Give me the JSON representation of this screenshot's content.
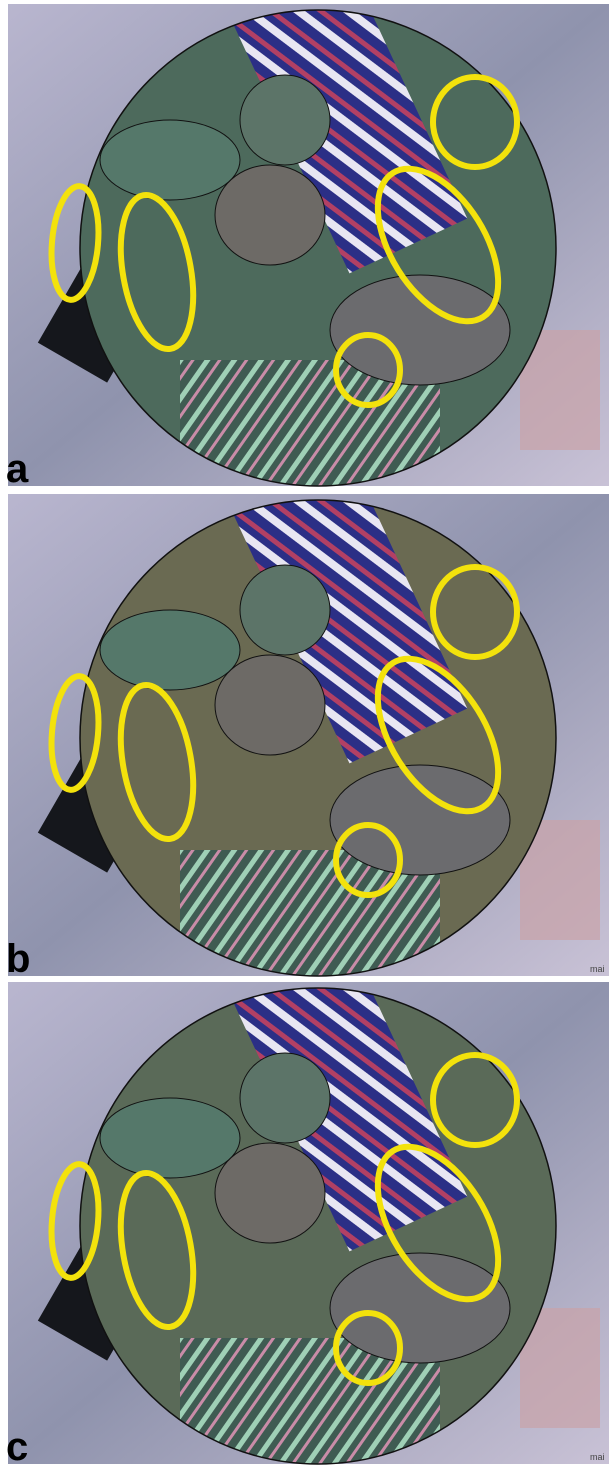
{
  "panels": [
    {
      "label": "a"
    },
    {
      "label": "b",
      "watermark": "mai"
    },
    {
      "label": "c",
      "watermark": "mai"
    }
  ]
}
